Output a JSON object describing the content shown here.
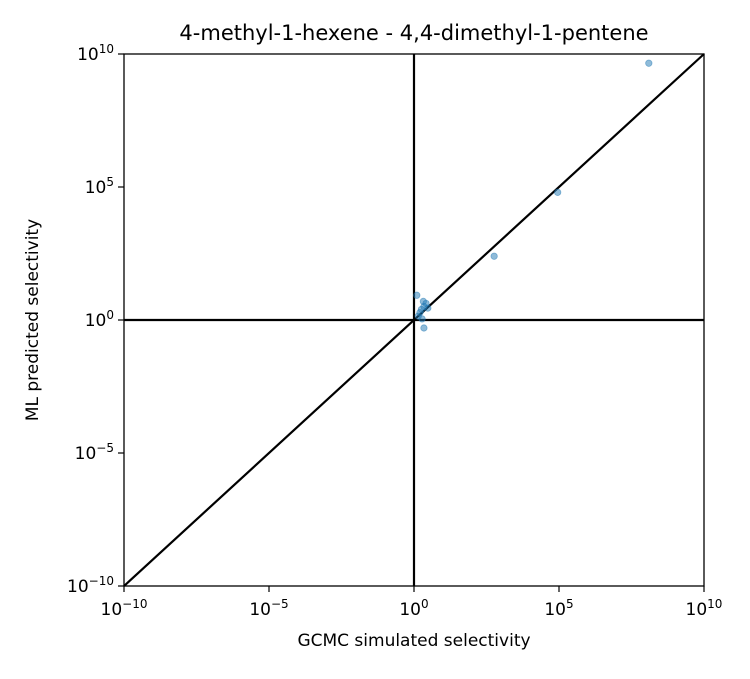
{
  "chart_data": {
    "type": "scatter",
    "title": "4-methyl-1-hexene - 4,4-dimethyl-1-pentene",
    "xlabel": "GCMC simulated selectivity",
    "ylabel": "ML predicted selectivity",
    "xscale": "log",
    "yscale": "log",
    "xlim": [
      1e-10,
      10000000000.0
    ],
    "ylim": [
      1e-10,
      10000000000.0
    ],
    "x_ticks": [
      {
        "base": "10",
        "exp": "−10",
        "value": 1e-10
      },
      {
        "base": "10",
        "exp": "−5",
        "value": 1e-05
      },
      {
        "base": "10",
        "exp": "0",
        "value": 1
      },
      {
        "base": "10",
        "exp": "5",
        "value": 100000.0
      },
      {
        "base": "10",
        "exp": "10",
        "value": 10000000000.0
      }
    ],
    "y_ticks": [
      {
        "base": "10",
        "exp": "−10",
        "value": 1e-10
      },
      {
        "base": "10",
        "exp": "−5",
        "value": 1e-05
      },
      {
        "base": "10",
        "exp": "0",
        "value": 1
      },
      {
        "base": "10",
        "exp": "5",
        "value": 100000.0
      },
      {
        "base": "10",
        "exp": "10",
        "value": 10000000000.0
      }
    ],
    "reference_lines": [
      {
        "kind": "diagonal",
        "equation": "y = x"
      },
      {
        "kind": "horizontal",
        "y": 1
      },
      {
        "kind": "vertical",
        "x": 1
      }
    ],
    "grid": false,
    "point_color": "#1f77b4",
    "line_color": "#000000",
    "series": [
      {
        "points": [
          {
            "x": 125000000.0,
            "y": 4500000000.0
          },
          {
            "x": 90000.0,
            "y": 63000.0
          },
          {
            "x": 580,
            "y": 250
          },
          {
            "x": 1.25,
            "y": 8.5
          },
          {
            "x": 2.1,
            "y": 5.0
          },
          {
            "x": 2.6,
            "y": 4.2
          },
          {
            "x": 2.2,
            "y": 3.2
          },
          {
            "x": 1.8,
            "y": 2.5
          },
          {
            "x": 3.0,
            "y": 2.8
          },
          {
            "x": 1.6,
            "y": 1.9
          },
          {
            "x": 1.4,
            "y": 1.4
          },
          {
            "x": 1.9,
            "y": 1.1
          },
          {
            "x": 2.2,
            "y": 0.5
          }
        ]
      }
    ]
  }
}
